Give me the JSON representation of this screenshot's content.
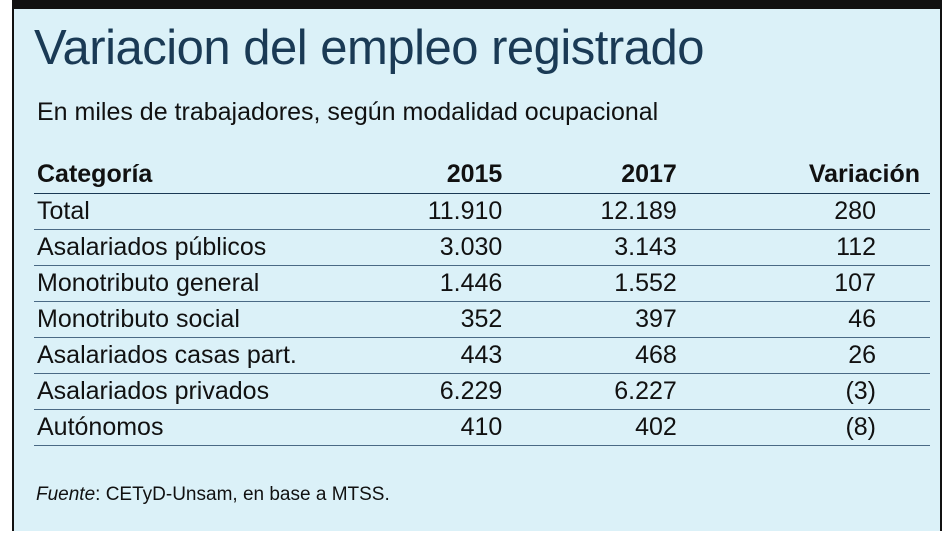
{
  "title": "Variacion del empleo registrado",
  "subtitle": "En miles de trabajadores, según modalidad ocupacional",
  "source": {
    "label": "Fuente",
    "text": ": CETyD-Unsam, en base a MTSS."
  },
  "colors": {
    "background": "#dbf1f8",
    "title": "#1a3a55",
    "top_bar": "#111111"
  },
  "chart_data": {
    "type": "table",
    "title": "Variacion del empleo registrado",
    "subtitle": "En miles de trabajadores, según modalidad ocupacional",
    "columns": [
      "Categoría",
      "2015",
      "2017",
      "Variación"
    ],
    "rows": [
      {
        "categoria": "Total",
        "v2015": "11.910",
        "v2017": "12.189",
        "variacion": "280"
      },
      {
        "categoria": "Asalariados públicos",
        "v2015": "3.030",
        "v2017": "3.143",
        "variacion": "112"
      },
      {
        "categoria": "Monotributo general",
        "v2015": "1.446",
        "v2017": "1.552",
        "variacion": "107"
      },
      {
        "categoria": "Monotributo social",
        "v2015": "352",
        "v2017": "397",
        "variacion": "46"
      },
      {
        "categoria": "Asalariados casas part.",
        "v2015": "443",
        "v2017": "468",
        "variacion": "26"
      },
      {
        "categoria": "Asalariados privados",
        "v2015": "6.229",
        "v2017": "6.227",
        "variacion": "(3)"
      },
      {
        "categoria": "Autónomos",
        "v2015": "410",
        "v2017": "402",
        "variacion": "(8)"
      }
    ]
  }
}
